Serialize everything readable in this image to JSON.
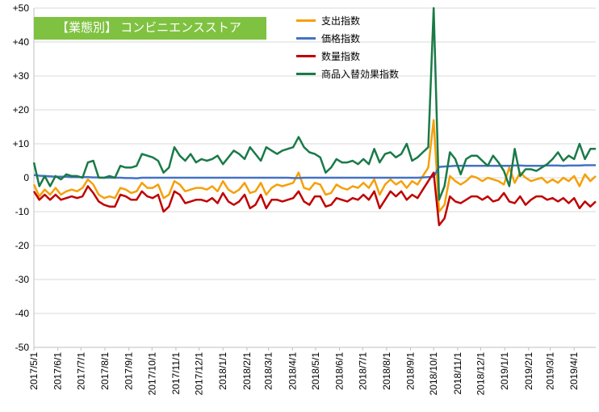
{
  "chart_data": {
    "type": "line",
    "title": "【業態別】 コンビニエンスストア",
    "xlabel": "",
    "ylabel": "",
    "ylim": [
      -50,
      50
    ],
    "yticks": [
      -50,
      -40,
      -30,
      -20,
      -10,
      0,
      10,
      20,
      30,
      40,
      50
    ],
    "ytick_labels": [
      "-50",
      "-40",
      "-30",
      "-20",
      "-10",
      "0",
      "+10",
      "+20",
      "+30",
      "+40",
      "+50"
    ],
    "x_start": "2017/5/1",
    "x_end": "2019/4/29",
    "x_tick_labels": [
      "2017/5/1",
      "2017/6/1",
      "2017/7/1",
      "2017/8/1",
      "2017/9/1",
      "2017/10/1",
      "2017/11/1",
      "2017/12/1",
      "2018/1/1",
      "2018/2/1",
      "2018/3/1",
      "2018/4/1",
      "2018/5/1",
      "2018/6/1",
      "2018/7/1",
      "2018/8/1",
      "2018/9/1",
      "2018/10/1",
      "2018/11/1",
      "2018/12/1",
      "2019/1/1",
      "2019/2/1",
      "2019/3/1",
      "2019/4/1"
    ],
    "grid": true,
    "legend_position": "top-center",
    "x": [
      "2017/5/1",
      "2017/5/8",
      "2017/5/15",
      "2017/5/22",
      "2017/5/29",
      "2017/6/5",
      "2017/6/12",
      "2017/6/19",
      "2017/6/26",
      "2017/7/3",
      "2017/7/10",
      "2017/7/17",
      "2017/7/24",
      "2017/7/31",
      "2017/8/7",
      "2017/8/14",
      "2017/8/21",
      "2017/8/28",
      "2017/9/4",
      "2017/9/11",
      "2017/9/18",
      "2017/9/25",
      "2017/10/2",
      "2017/10/9",
      "2017/10/16",
      "2017/10/23",
      "2017/10/30",
      "2017/11/6",
      "2017/11/13",
      "2017/11/20",
      "2017/11/27",
      "2017/12/4",
      "2017/12/11",
      "2017/12/18",
      "2017/12/25",
      "2018/1/1",
      "2018/1/8",
      "2018/1/15",
      "2018/1/22",
      "2018/1/29",
      "2018/2/5",
      "2018/2/12",
      "2018/2/19",
      "2018/2/26",
      "2018/3/5",
      "2018/3/12",
      "2018/3/19",
      "2018/3/26",
      "2018/4/2",
      "2018/4/9",
      "2018/4/16",
      "2018/4/23",
      "2018/4/30",
      "2018/5/7",
      "2018/5/14",
      "2018/5/21",
      "2018/5/28",
      "2018/6/4",
      "2018/6/11",
      "2018/6/18",
      "2018/6/25",
      "2018/7/2",
      "2018/7/9",
      "2018/7/16",
      "2018/7/23",
      "2018/7/30",
      "2018/8/6",
      "2018/8/13",
      "2018/8/20",
      "2018/8/27",
      "2018/9/3",
      "2018/9/10",
      "2018/9/17",
      "2018/9/24",
      "2018/10/1",
      "2018/10/8",
      "2018/10/15",
      "2018/10/22",
      "2018/10/29",
      "2018/11/5",
      "2018/11/12",
      "2018/11/19",
      "2018/11/26",
      "2018/12/3",
      "2018/12/10",
      "2018/12/17",
      "2018/12/24",
      "2018/12/31",
      "2019/1/7",
      "2019/1/14",
      "2019/1/21",
      "2019/1/28",
      "2019/2/4",
      "2019/2/11",
      "2019/2/18",
      "2019/2/25",
      "2019/3/4",
      "2019/3/11",
      "2019/3/18",
      "2019/3/25",
      "2019/4/1",
      "2019/4/8",
      "2019/4/15",
      "2019/4/22",
      "2019/4/29"
    ],
    "series": [
      {
        "name": "支出指数",
        "color": "#f5a00a",
        "values": [
          -2,
          -5.5,
          -3.5,
          -5,
          -3,
          -5,
          -4,
          -3.5,
          -4,
          -3,
          -0.5,
          -2,
          -5,
          -6,
          -5.5,
          -6,
          -3,
          -3.5,
          -4.5,
          -4,
          -1.5,
          -3,
          -3,
          -2,
          -6,
          -5,
          -1,
          -2,
          -4,
          -3.5,
          -3,
          -3,
          -3.5,
          -2.5,
          -4,
          -1,
          -3.5,
          -4.5,
          -3.5,
          -1.5,
          -4.5,
          -4,
          -1.5,
          -5,
          -3,
          -2,
          -2.5,
          -2,
          -1.5,
          1.5,
          -3,
          -3.5,
          -1.5,
          -2,
          -5,
          -4.5,
          -2,
          -3,
          -3.5,
          -2.5,
          -3,
          -1.5,
          -3,
          -0.5,
          -5,
          -2,
          -0.5,
          -2,
          -1,
          -3,
          -1,
          -2,
          0.5,
          3,
          17,
          -10,
          -8,
          0.5,
          -1,
          -2,
          -1,
          0.5,
          0,
          -1,
          0,
          -0.5,
          -1,
          -2,
          3,
          -1.5,
          1.5,
          0,
          -1,
          -0.5,
          0,
          -1.5,
          -0.5,
          -1.5,
          0,
          -1,
          0.5,
          -2.5,
          1,
          -1,
          0.5
        ]
      },
      {
        "name": "価格指数",
        "color": "#4472c4",
        "values": [
          0.8,
          0.6,
          0.5,
          0.4,
          0.3,
          0.3,
          0.3,
          0.2,
          0.2,
          0.2,
          0.2,
          0.1,
          0.1,
          0,
          0,
          0,
          0,
          -0.1,
          -0.1,
          -0.2,
          0,
          0,
          0,
          0,
          0,
          0,
          0,
          0,
          0,
          0,
          0,
          0,
          0,
          0,
          0,
          0,
          0,
          0,
          0,
          0,
          0,
          0,
          0,
          0,
          0,
          0,
          0,
          0,
          -0.1,
          -0.1,
          0,
          0,
          0,
          0,
          0,
          0,
          0,
          0,
          0,
          0,
          0,
          0,
          0,
          0,
          0,
          0,
          0,
          0,
          0,
          0,
          0,
          0,
          0.1,
          0.2,
          0.3,
          3.2,
          3.3,
          3.4,
          3.5,
          3.5,
          3.5,
          3.5,
          3.5,
          3.5,
          3.5,
          3.5,
          3.5,
          3.5,
          3.5,
          3.6,
          3.6,
          3.5,
          3.5,
          3.5,
          3.5,
          3.6,
          3.6,
          3.6,
          3.5,
          3.6,
          3.6,
          3.6,
          3.7,
          3.7,
          3.7
        ]
      },
      {
        "name": "数量指数",
        "color": "#c00000",
        "values": [
          -4,
          -6.5,
          -5,
          -6.5,
          -5,
          -6.5,
          -6,
          -5.5,
          -6,
          -5.5,
          -2.5,
          -4.5,
          -7,
          -8,
          -8.5,
          -8.5,
          -5,
          -5.5,
          -6.5,
          -6.5,
          -4,
          -5.5,
          -6,
          -5,
          -10,
          -8.5,
          -4,
          -5,
          -7.5,
          -7,
          -6.5,
          -6.5,
          -7,
          -6,
          -7.5,
          -4.5,
          -7,
          -8,
          -7,
          -5,
          -9,
          -8,
          -5,
          -9,
          -6.5,
          -6.5,
          -7,
          -6.5,
          -6,
          -4,
          -7,
          -8,
          -5.5,
          -5.5,
          -8.5,
          -8,
          -6,
          -6.5,
          -7,
          -6,
          -6.5,
          -5,
          -6.5,
          -4,
          -9,
          -6.5,
          -4,
          -5.5,
          -4,
          -6.5,
          -5,
          -6,
          -3.5,
          -1,
          1.5,
          -14,
          -12,
          -5.5,
          -7,
          -7.5,
          -6.5,
          -5.5,
          -5.5,
          -6.5,
          -5.5,
          -7,
          -6.5,
          -4.5,
          -7,
          -7.5,
          -5.5,
          -8,
          -6.5,
          -5.5,
          -5.5,
          -6.5,
          -6,
          -7,
          -6,
          -7.5,
          -6,
          -9,
          -7,
          -8.5,
          -7
        ]
      },
      {
        "name": "商品入替効果指数",
        "color": "#1a7a47",
        "values": [
          4.5,
          -2.5,
          0.5,
          -2.5,
          0.5,
          -0.5,
          1,
          0.5,
          0.5,
          0,
          4.5,
          5,
          0,
          0,
          0.5,
          0,
          3.5,
          3,
          3,
          3.5,
          7,
          6.5,
          6,
          5,
          1.5,
          3,
          9,
          6.5,
          5,
          7,
          4.5,
          5.5,
          5,
          5.5,
          6.5,
          4,
          6,
          8,
          7,
          5.5,
          9,
          7,
          5,
          9,
          8,
          7,
          8,
          8.5,
          9,
          12,
          9,
          7.5,
          7,
          6,
          1.5,
          3,
          5.5,
          4.5,
          4.5,
          5,
          4,
          5.5,
          4,
          8.5,
          4.5,
          7,
          7.5,
          6,
          7,
          10,
          5,
          6,
          7.5,
          9,
          50,
          -6.5,
          -2.5,
          7.5,
          5.5,
          1,
          5.5,
          6.5,
          6.5,
          5,
          3.5,
          6.5,
          4.5,
          2,
          -2.5,
          8.5,
          0.5,
          2.5,
          2.5,
          2,
          3,
          4,
          5.5,
          7.5,
          5,
          6.5,
          5.5,
          10,
          5.5,
          8.5,
          8.5
        ]
      }
    ]
  }
}
